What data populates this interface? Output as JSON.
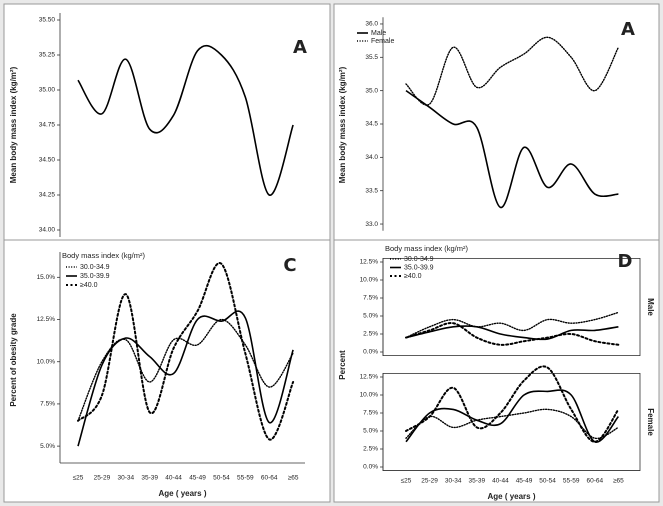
{
  "chart_data": [
    {
      "type": "line",
      "annotation": "A",
      "ylabel": "Mean body mass index (kg/m²)",
      "color": "#000000",
      "style": "solid",
      "values": [
        35.07,
        34.83,
        35.22,
        34.72,
        34.82,
        35.28,
        35.25,
        34.95,
        34.25,
        34.75
      ],
      "ylim": [
        33.95,
        35.55
      ],
      "yticks": [
        {
          "value": 34.0,
          "label": "34.00"
        },
        {
          "value": 34.25,
          "label": "34.25"
        },
        {
          "value": 34.5,
          "label": "34.50"
        },
        {
          "value": 34.75,
          "label": "34.75"
        },
        {
          "value": 35.0,
          "label": "35.00"
        },
        {
          "value": 35.25,
          "label": "35.25"
        },
        {
          "value": 35.5,
          "label": "35.50"
        }
      ]
    },
    {
      "type": "line",
      "annotation": "A",
      "ylabel": "Mean body mass index (kg/m²)",
      "series": [
        {
          "name": "Male",
          "color": "#000000",
          "style": "solid",
          "values": [
            35.0,
            34.75,
            34.5,
            34.45,
            33.25,
            34.15,
            33.55,
            33.9,
            33.45,
            33.45
          ]
        },
        {
          "name": "Female",
          "color": "#000000",
          "style": "dotted",
          "values": [
            35.1,
            34.8,
            35.65,
            35.05,
            35.35,
            35.55,
            35.8,
            35.5,
            35.0,
            35.65
          ]
        }
      ],
      "ylim": [
        32.9,
        36.1
      ],
      "yticks": [
        {
          "value": 33.0,
          "label": "33.0"
        },
        {
          "value": 33.5,
          "label": "33.5"
        },
        {
          "value": 34.0,
          "label": "34.0"
        },
        {
          "value": 34.5,
          "label": "34.5"
        },
        {
          "value": 35.0,
          "label": "35.0"
        },
        {
          "value": 35.5,
          "label": "35.5"
        },
        {
          "value": 36.0,
          "label": "36.0"
        }
      ]
    },
    {
      "type": "line",
      "annotation": "C",
      "ylabel": "Percent of obesity grade",
      "xlabel": "Age ( years )",
      "legend_title": "Body mass index (kg/m²)",
      "categories": [
        "≤25",
        "25-29",
        "30-34",
        "35-39",
        "40-44",
        "45-49",
        "50-54",
        "55-59",
        "60-64",
        "≥65"
      ],
      "series": [
        {
          "name": "30.0-34.9",
          "color": "#000000",
          "style": "dotted",
          "values": [
            6.5,
            10.0,
            11.3,
            8.8,
            11.3,
            11.0,
            12.5,
            11.0,
            8.5,
            10.5
          ]
        },
        {
          "name": "35.0-39.9",
          "color": "#000000",
          "style": "solid",
          "values": [
            5.0,
            9.8,
            11.4,
            10.3,
            9.3,
            12.5,
            12.4,
            12.6,
            6.4,
            10.7
          ]
        },
        {
          "name": "≥40.0",
          "color": "#000000",
          "style": "dashed",
          "values": [
            6.5,
            8.0,
            14.0,
            7.0,
            10.8,
            13.0,
            15.8,
            10.5,
            5.4,
            8.8
          ]
        }
      ],
      "ylim": [
        4.0,
        16.5
      ],
      "yticks": [
        {
          "value": 5.0,
          "label": "5.0%"
        },
        {
          "value": 7.5,
          "label": "7.5%"
        },
        {
          "value": 10.0,
          "label": "10.0%"
        },
        {
          "value": 12.5,
          "label": "12.5%"
        },
        {
          "value": 15.0,
          "label": "15.0%"
        }
      ]
    },
    {
      "type": "line",
      "annotation": "D",
      "ylabel": "Percent",
      "facet": "Male",
      "legend_title": "Body mass index (kg/m²)",
      "series": [
        {
          "name": "30.0-34.9",
          "color": "#000000",
          "style": "dotted",
          "values": [
            2.0,
            3.5,
            4.5,
            3.5,
            4.0,
            3.0,
            4.5,
            4.0,
            4.5,
            5.5
          ]
        },
        {
          "name": "35.0-39.9",
          "color": "#000000",
          "style": "solid",
          "values": [
            2.0,
            2.8,
            3.5,
            3.5,
            2.5,
            2.0,
            1.8,
            3.0,
            3.0,
            3.5
          ]
        },
        {
          "name": "≥40.0",
          "color": "#000000",
          "style": "dashed",
          "values": [
            2.0,
            3.0,
            4.0,
            2.0,
            1.0,
            1.5,
            2.0,
            2.5,
            1.5,
            1.0
          ]
        }
      ],
      "ylim": [
        -0.5,
        13.0
      ],
      "yticks": [
        {
          "value": 0.0,
          "label": "0.0%"
        },
        {
          "value": 2.5,
          "label": "2.5%"
        },
        {
          "value": 5.0,
          "label": "5.0%"
        },
        {
          "value": 7.5,
          "label": "7.5%"
        },
        {
          "value": 10.0,
          "label": "10.0%"
        },
        {
          "value": 12.5,
          "label": "12.5%"
        }
      ]
    },
    {
      "type": "line",
      "facet": "Female",
      "xlabel": "Age ( years )",
      "categories": [
        "≤25",
        "25-29",
        "30-34",
        "35-39",
        "40-44",
        "45-49",
        "50-54",
        "55-59",
        "60-64",
        "≥65"
      ],
      "series": [
        {
          "color": "#000000",
          "style": "dotted",
          "values": [
            4.0,
            7.0,
            5.5,
            6.5,
            7.0,
            7.5,
            8.0,
            7.0,
            4.0,
            5.5
          ]
        },
        {
          "color": "#000000",
          "style": "solid",
          "values": [
            3.5,
            7.5,
            8.0,
            6.5,
            6.0,
            10.0,
            10.5,
            10.0,
            3.5,
            7.0
          ]
        },
        {
          "color": "#000000",
          "style": "dashed",
          "values": [
            5.0,
            7.0,
            11.0,
            5.5,
            7.5,
            12.0,
            13.8,
            8.0,
            3.5,
            8.0
          ]
        }
      ],
      "ylim": [
        -0.5,
        13.0
      ],
      "yticks": [
        {
          "value": 0.0,
          "label": "0.0%"
        },
        {
          "value": 2.5,
          "label": "2.5%"
        },
        {
          "value": 5.0,
          "label": "5.0%"
        },
        {
          "value": 7.5,
          "label": "7.5%"
        },
        {
          "value": 10.0,
          "label": "10.0%"
        },
        {
          "value": 12.5,
          "label": "12.5%"
        }
      ]
    }
  ]
}
